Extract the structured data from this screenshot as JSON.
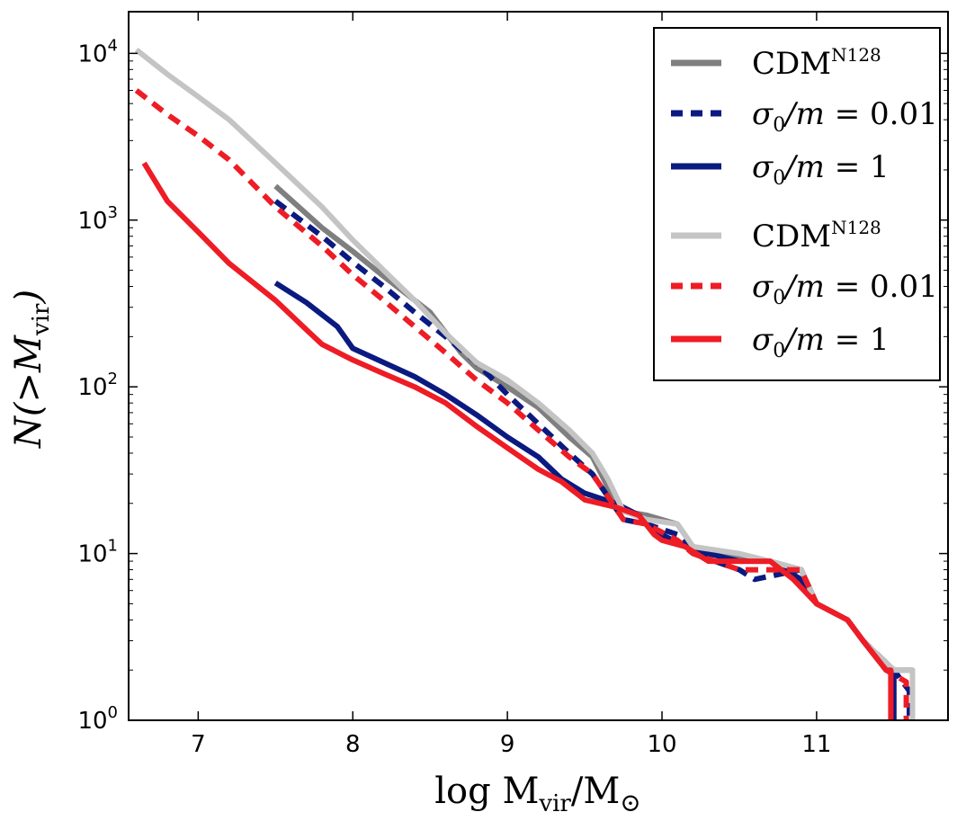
{
  "chart_data": {
    "type": "line",
    "xlabel": "log Mvir/M⊙",
    "ylabel": "N(>Mvir)",
    "xlim": [
      6.55,
      11.85
    ],
    "ylim_log10": [
      0,
      4.25
    ],
    "yscale": "log",
    "x_ticks": [
      7,
      8,
      9,
      10,
      11
    ],
    "x_tick_labels": [
      "7",
      "8",
      "9",
      "10",
      "11"
    ],
    "y_ticks": [
      1,
      10,
      100,
      1000,
      10000
    ],
    "y_tick_labels": [
      "10^0",
      "10^1",
      "10^2",
      "10^3",
      "10^4"
    ],
    "legend_position": "top-right",
    "series": [
      {
        "name": "CDM^N128",
        "color": "#7f7f7f",
        "style": "solid",
        "points": [
          [
            7.5,
            1600
          ],
          [
            7.8,
            900
          ],
          [
            8.0,
            650
          ],
          [
            8.2,
            460
          ],
          [
            8.5,
            280
          ],
          [
            8.7,
            160
          ],
          [
            8.8,
            130
          ],
          [
            9.0,
            100
          ],
          [
            9.2,
            75
          ],
          [
            9.4,
            50
          ],
          [
            9.55,
            38
          ],
          [
            9.65,
            25
          ],
          [
            9.75,
            18
          ],
          [
            9.9,
            17
          ],
          [
            10.1,
            15
          ],
          [
            10.2,
            11
          ],
          [
            10.5,
            9.5
          ],
          [
            10.7,
            9
          ],
          [
            10.9,
            8
          ],
          [
            11.0,
            5
          ],
          [
            11.2,
            4
          ],
          [
            11.3,
            3
          ],
          [
            11.5,
            2
          ],
          [
            11.62,
            2
          ],
          [
            11.62,
            1
          ]
        ]
      },
      {
        "name": "σ0/m=0.01",
        "color": "#0a1a80",
        "style": "dashed",
        "points": [
          [
            7.5,
            1300
          ],
          [
            7.8,
            800
          ],
          [
            8.0,
            560
          ],
          [
            8.2,
            400
          ],
          [
            8.4,
            280
          ],
          [
            8.6,
            200
          ],
          [
            8.8,
            140
          ],
          [
            9.0,
            90
          ],
          [
            9.2,
            60
          ],
          [
            9.4,
            40
          ],
          [
            9.55,
            30
          ],
          [
            9.65,
            22
          ],
          [
            9.75,
            16
          ],
          [
            9.9,
            15
          ],
          [
            10.1,
            13
          ],
          [
            10.2,
            10
          ],
          [
            10.5,
            8
          ],
          [
            10.6,
            7
          ],
          [
            10.9,
            8
          ],
          [
            11.0,
            5
          ],
          [
            11.2,
            4
          ],
          [
            11.3,
            3
          ],
          [
            11.5,
            2
          ],
          [
            11.6,
            1.5
          ],
          [
            11.6,
            1
          ]
        ]
      },
      {
        "name": "σ0/m=1",
        "color": "#0a1a80",
        "style": "solid",
        "points": [
          [
            7.5,
            420
          ],
          [
            7.7,
            320
          ],
          [
            7.9,
            230
          ],
          [
            8.0,
            170
          ],
          [
            8.2,
            140
          ],
          [
            8.4,
            115
          ],
          [
            8.6,
            90
          ],
          [
            8.8,
            68
          ],
          [
            9.0,
            50
          ],
          [
            9.2,
            38
          ],
          [
            9.35,
            28
          ],
          [
            9.5,
            23
          ],
          [
            9.7,
            20
          ],
          [
            9.85,
            17
          ],
          [
            9.95,
            14
          ],
          [
            10.0,
            13
          ],
          [
            10.15,
            11
          ],
          [
            10.3,
            10
          ],
          [
            10.5,
            9
          ],
          [
            10.7,
            9
          ],
          [
            10.9,
            7
          ],
          [
            11.0,
            5
          ],
          [
            11.2,
            4
          ],
          [
            11.3,
            3
          ],
          [
            11.45,
            2
          ],
          [
            11.5,
            2
          ],
          [
            11.5,
            1
          ]
        ]
      },
      {
        "name": "CDM^N128",
        "color": "#c4c4c4",
        "style": "solid",
        "points": [
          [
            6.6,
            10500
          ],
          [
            6.8,
            7500
          ],
          [
            7.0,
            5500
          ],
          [
            7.2,
            4000
          ],
          [
            7.5,
            2200
          ],
          [
            7.8,
            1200
          ],
          [
            8.0,
            760
          ],
          [
            8.2,
            500
          ],
          [
            8.4,
            330
          ],
          [
            8.6,
            210
          ],
          [
            8.8,
            140
          ],
          [
            9.0,
            110
          ],
          [
            9.2,
            80
          ],
          [
            9.4,
            55
          ],
          [
            9.55,
            40
          ],
          [
            9.65,
            28
          ],
          [
            9.75,
            18
          ],
          [
            9.9,
            16
          ],
          [
            10.1,
            15
          ],
          [
            10.2,
            11
          ],
          [
            10.5,
            10
          ],
          [
            10.7,
            9
          ],
          [
            10.9,
            8
          ],
          [
            11.0,
            5
          ],
          [
            11.2,
            4
          ],
          [
            11.3,
            3
          ],
          [
            11.5,
            2
          ],
          [
            11.62,
            2
          ],
          [
            11.62,
            1
          ]
        ]
      },
      {
        "name": "σ0/m=0.01",
        "color": "#ee1c25",
        "style": "dashed",
        "points": [
          [
            6.6,
            6000
          ],
          [
            6.8,
            4300
          ],
          [
            7.0,
            3200
          ],
          [
            7.2,
            2300
          ],
          [
            7.5,
            1200
          ],
          [
            7.8,
            700
          ],
          [
            8.0,
            470
          ],
          [
            8.2,
            330
          ],
          [
            8.4,
            230
          ],
          [
            8.6,
            160
          ],
          [
            8.8,
            110
          ],
          [
            9.0,
            80
          ],
          [
            9.2,
            55
          ],
          [
            9.4,
            38
          ],
          [
            9.55,
            30
          ],
          [
            9.65,
            22
          ],
          [
            9.75,
            16
          ],
          [
            9.9,
            15
          ],
          [
            10.1,
            12
          ],
          [
            10.2,
            10
          ],
          [
            10.5,
            8
          ],
          [
            10.7,
            8
          ],
          [
            10.9,
            8
          ],
          [
            11.0,
            5
          ],
          [
            11.2,
            4
          ],
          [
            11.3,
            3
          ],
          [
            11.45,
            2
          ],
          [
            11.58,
            1.7
          ],
          [
            11.58,
            1
          ]
        ]
      },
      {
        "name": "σ0/m=1",
        "color": "#ee1c25",
        "style": "solid",
        "points": [
          [
            6.65,
            2200
          ],
          [
            6.8,
            1300
          ],
          [
            7.0,
            850
          ],
          [
            7.2,
            550
          ],
          [
            7.5,
            330
          ],
          [
            7.7,
            220
          ],
          [
            7.8,
            180
          ],
          [
            8.0,
            145
          ],
          [
            8.2,
            120
          ],
          [
            8.4,
            100
          ],
          [
            8.6,
            80
          ],
          [
            8.8,
            58
          ],
          [
            9.0,
            43
          ],
          [
            9.2,
            32
          ],
          [
            9.35,
            27
          ],
          [
            9.5,
            21
          ],
          [
            9.7,
            19
          ],
          [
            9.85,
            17
          ],
          [
            9.95,
            13
          ],
          [
            10.0,
            12
          ],
          [
            10.15,
            11
          ],
          [
            10.3,
            9
          ],
          [
            10.5,
            9
          ],
          [
            10.7,
            9
          ],
          [
            10.85,
            7
          ],
          [
            11.0,
            5
          ],
          [
            11.2,
            4
          ],
          [
            11.3,
            3
          ],
          [
            11.45,
            2
          ],
          [
            11.48,
            2
          ],
          [
            11.48,
            1
          ]
        ]
      }
    ],
    "legend": [
      {
        "label_main": "CDM",
        "label_sup": "N128",
        "color": "#7f7f7f",
        "style": "solid"
      },
      {
        "label_main": "σ0/m = 0.01",
        "label_sup": "",
        "color": "#0a1a80",
        "style": "dashed"
      },
      {
        "label_main": "σ0/m = 1",
        "label_sup": "",
        "color": "#0a1a80",
        "style": "solid"
      },
      {
        "label_main": "CDM",
        "label_sup": "N128",
        "color": "#c4c4c4",
        "style": "solid"
      },
      {
        "label_main": "σ0/m = 0.01",
        "label_sup": "",
        "color": "#ee1c25",
        "style": "dashed"
      },
      {
        "label_main": "σ0/m = 1",
        "label_sup": "",
        "color": "#ee1c25",
        "style": "solid"
      }
    ]
  }
}
